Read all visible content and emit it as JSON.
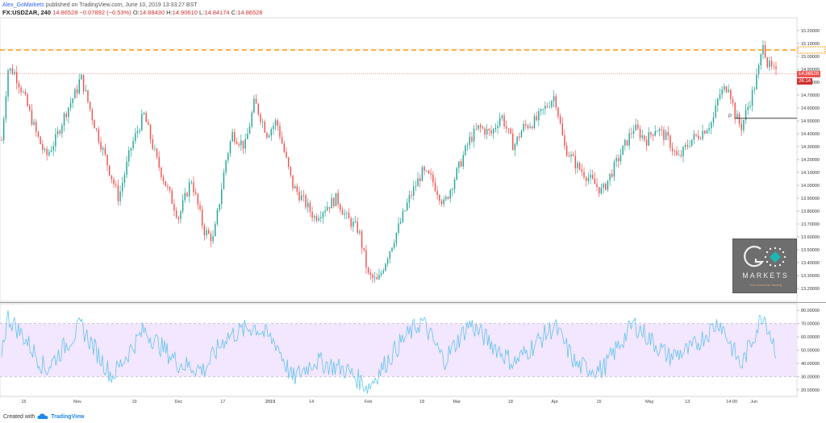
{
  "header": {
    "author": "Alex_GoMarkets",
    "published_text": "published on TradingView.com, June 10, 2019 13:33:27 BST",
    "symbol": "FX:USDZAR, 240",
    "last_value": "14.86528",
    "change": "−0.07892 (−0.53%)",
    "ohlc": {
      "o_label": "O:",
      "o": "14.88430",
      "h_label": "H:",
      "h": "14.90610",
      "l_label": "L:",
      "l": "14.84174",
      "c_label": "C:",
      "c": "14.86528"
    }
  },
  "footer": {
    "created_with": "Created with",
    "brand": "TradingView"
  },
  "watermark": {
    "text": "MARKETS",
    "tagline": "Your choice for trading"
  },
  "price_tags": {
    "last": "14.86528",
    "timer": "26:14"
  },
  "colors": {
    "up": "#26a69a",
    "down": "#ef5350",
    "orange": "#ff9800",
    "rsi": "#5fc4ec",
    "rsi_band": "#f3e6ff"
  },
  "chart_data": [
    {
      "type": "candlestick",
      "symbol": "FX:USDZAR",
      "interval": "240",
      "ylim": [
        13.1,
        15.3
      ],
      "y_ticks": [
        "15.20000",
        "15.10000",
        "15.00000",
        "14.90000",
        "14.80000",
        "14.70000",
        "14.60000",
        "14.50000",
        "14.40000",
        "14.30000",
        "14.20000",
        "14.10000",
        "14.00000",
        "13.90000",
        "13.80000",
        "13.70000",
        "13.60000",
        "13.50000",
        "13.40000",
        "13.30000",
        "13.20000"
      ],
      "x_ticks": [
        "15",
        "Nov",
        "19",
        "Dec",
        "17",
        "2019",
        "14",
        "Feb",
        "18",
        "Mar",
        "18",
        "Apr",
        "15",
        "May",
        "13",
        "14:00",
        "Jun"
      ],
      "horizontal_lines": [
        {
          "style": "dashed",
          "color": "#ff9800",
          "value": 15.05
        },
        {
          "style": "dotted",
          "color": "#ef5350",
          "value": 14.865
        }
      ],
      "pivot_marker": {
        "label": "P",
        "value": 14.52
      },
      "series": [
        {
          "name": "USDZAR",
          "waypoints": [
            {
              "date": "Oct 8",
              "close": 14.35
            },
            {
              "date": "Oct 10",
              "close": 14.9
            },
            {
              "date": "Oct 12",
              "close": 14.88
            },
            {
              "date": "Oct 15",
              "close": 14.7
            },
            {
              "date": "Oct 19",
              "close": 14.4
            },
            {
              "date": "Oct 22",
              "close": 14.22
            },
            {
              "date": "Oct 25",
              "close": 14.35
            },
            {
              "date": "Oct 28",
              "close": 14.55
            },
            {
              "date": "Nov 1",
              "close": 14.75
            },
            {
              "date": "Nov 2",
              "close": 14.85
            },
            {
              "date": "Nov 6",
              "close": 14.5
            },
            {
              "date": "Nov 12",
              "close": 14.05
            },
            {
              "date": "Nov 14",
              "close": 13.9
            },
            {
              "date": "Nov 18",
              "close": 14.3
            },
            {
              "date": "Nov 22",
              "close": 14.55
            },
            {
              "date": "Nov 26",
              "close": 14.2
            },
            {
              "date": "Nov 29",
              "close": 14.0
            },
            {
              "date": "Dec 3",
              "close": 13.75
            },
            {
              "date": "Dec 7",
              "close": 14.05
            },
            {
              "date": "Dec 11",
              "close": 13.65
            },
            {
              "date": "Dec 14",
              "close": 13.58
            },
            {
              "date": "Dec 18",
              "close": 14.2
            },
            {
              "date": "Dec 20",
              "close": 14.4
            },
            {
              "date": "Dec 24",
              "close": 14.3
            },
            {
              "date": "Dec 27",
              "close": 14.65
            },
            {
              "date": "Dec 31",
              "close": 14.4
            },
            {
              "date": "Jan 3",
              "close": 14.5
            },
            {
              "date": "Jan 8",
              "close": 14.0
            },
            {
              "date": "Jan 11",
              "close": 13.9
            },
            {
              "date": "Jan 15",
              "close": 13.75
            },
            {
              "date": "Jan 18",
              "close": 13.82
            },
            {
              "date": "Jan 22",
              "close": 13.9
            },
            {
              "date": "Jan 25",
              "close": 13.75
            },
            {
              "date": "Jan 29",
              "close": 13.65
            },
            {
              "date": "Feb 1",
              "close": 13.3
            },
            {
              "date": "Feb 4",
              "close": 13.25
            },
            {
              "date": "Feb 7",
              "close": 13.45
            },
            {
              "date": "Feb 11",
              "close": 13.7
            },
            {
              "date": "Feb 14",
              "close": 13.9
            },
            {
              "date": "Feb 18",
              "close": 14.1
            },
            {
              "date": "Feb 21",
              "close": 14.05
            },
            {
              "date": "Feb 25",
              "close": 13.85
            },
            {
              "date": "Mar 1",
              "close": 14.1
            },
            {
              "date": "Mar 5",
              "close": 14.35
            },
            {
              "date": "Mar 8",
              "close": 14.45
            },
            {
              "date": "Mar 12",
              "close": 14.4
            },
            {
              "date": "Mar 15",
              "close": 14.55
            },
            {
              "date": "Mar 19",
              "close": 14.3
            },
            {
              "date": "Mar 22",
              "close": 14.45
            },
            {
              "date": "Mar 26",
              "close": 14.5
            },
            {
              "date": "Mar 29",
              "close": 14.6
            },
            {
              "date": "Apr 1",
              "close": 14.7
            },
            {
              "date": "Apr 4",
              "close": 14.3
            },
            {
              "date": "Apr 8",
              "close": 14.15
            },
            {
              "date": "Apr 12",
              "close": 14.05
            },
            {
              "date": "Apr 16",
              "close": 13.95
            },
            {
              "date": "Apr 19",
              "close": 14.1
            },
            {
              "date": "Apr 23",
              "close": 14.3
            },
            {
              "date": "Apr 26",
              "close": 14.45
            },
            {
              "date": "Apr 30",
              "close": 14.35
            },
            {
              "date": "May 3",
              "close": 14.45
            },
            {
              "date": "May 7",
              "close": 14.35
            },
            {
              "date": "May 10",
              "close": 14.2
            },
            {
              "date": "May 14",
              "close": 14.35
            },
            {
              "date": "May 17",
              "close": 14.4
            },
            {
              "date": "May 21",
              "close": 14.5
            },
            {
              "date": "May 23",
              "close": 14.7
            },
            {
              "date": "May 26",
              "close": 14.78
            },
            {
              "date": "May 28",
              "close": 14.55
            },
            {
              "date": "May 30",
              "close": 14.45
            },
            {
              "date": "Jun 3",
              "close": 14.75
            },
            {
              "date": "Jun 5",
              "close": 14.95
            },
            {
              "date": "Jun 6",
              "close": 15.15
            },
            {
              "date": "Jun 7",
              "close": 14.95
            },
            {
              "date": "Jun 10",
              "close": 14.865
            }
          ]
        }
      ]
    },
    {
      "type": "line",
      "name": "RSI",
      "ylim": [
        15,
        85
      ],
      "y_ticks": [
        "80.00000",
        "70.00000",
        "60.00000",
        "50.00000",
        "40.00000",
        "30.00000",
        "20.00000"
      ],
      "band": [
        30,
        70
      ],
      "midline": 50,
      "series": [
        {
          "waypoints": [
            {
              "date": "Oct 8",
              "value": 50
            },
            {
              "date": "Oct 10",
              "value": 75
            },
            {
              "date": "Oct 15",
              "value": 60
            },
            {
              "date": "Oct 22",
              "value": 35
            },
            {
              "date": "Nov 2",
              "value": 68
            },
            {
              "date": "Nov 12",
              "value": 30
            },
            {
              "date": "Nov 22",
              "value": 65
            },
            {
              "date": "Dec 3",
              "value": 40
            },
            {
              "date": "Dec 11",
              "value": 35
            },
            {
              "date": "Dec 18",
              "value": 60
            },
            {
              "date": "Dec 27",
              "value": 68
            },
            {
              "date": "Jan 3",
              "value": 55
            },
            {
              "date": "Jan 8",
              "value": 28
            },
            {
              "date": "Jan 15",
              "value": 42
            },
            {
              "date": "Jan 25",
              "value": 35
            },
            {
              "date": "Feb 1",
              "value": 22
            },
            {
              "date": "Feb 11",
              "value": 55
            },
            {
              "date": "Feb 18",
              "value": 72
            },
            {
              "date": "Feb 25",
              "value": 42
            },
            {
              "date": "Mar 5",
              "value": 70
            },
            {
              "date": "Mar 12",
              "value": 55
            },
            {
              "date": "Mar 19",
              "value": 40
            },
            {
              "date": "Apr 1",
              "value": 68
            },
            {
              "date": "Apr 8",
              "value": 38
            },
            {
              "date": "Apr 16",
              "value": 35
            },
            {
              "date": "Apr 26",
              "value": 70
            },
            {
              "date": "May 7",
              "value": 45
            },
            {
              "date": "May 14",
              "value": 50
            },
            {
              "date": "May 23",
              "value": 72
            },
            {
              "date": "May 30",
              "value": 38
            },
            {
              "date": "Jun 6",
              "value": 78
            },
            {
              "date": "Jun 10",
              "value": 50
            }
          ]
        }
      ]
    }
  ]
}
